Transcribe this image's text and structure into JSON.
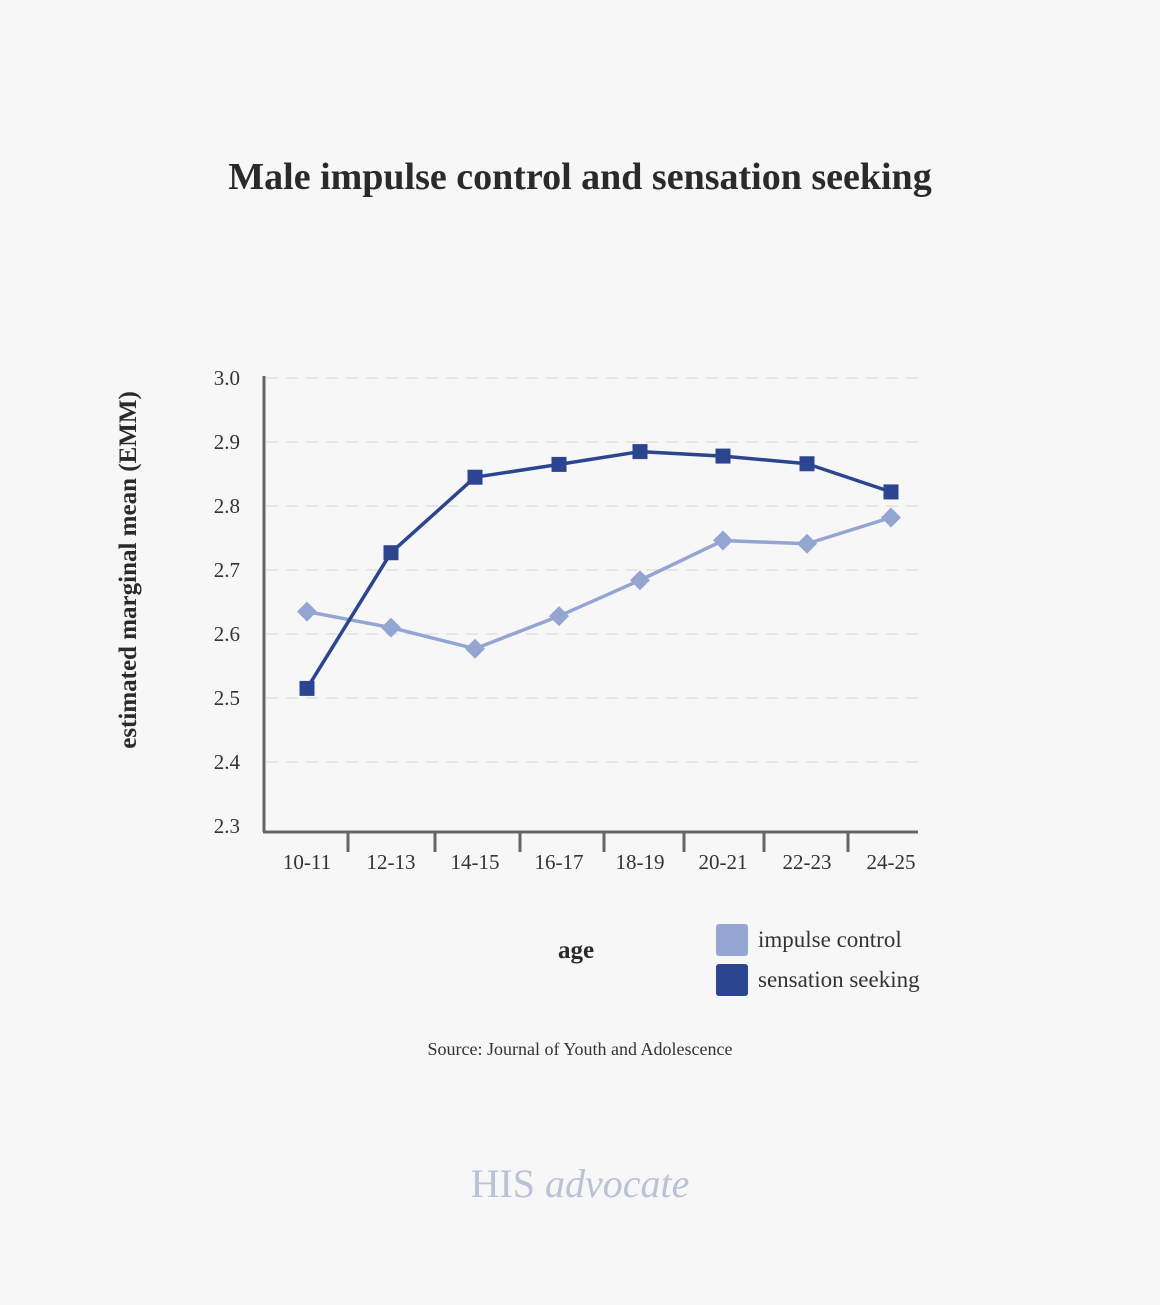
{
  "chart_data": {
    "type": "line",
    "title": "Male impulse control and sensation seeking",
    "xlabel": "age",
    "ylabel": "estimated marginal mean (EMM)",
    "categories": [
      "10-11",
      "12-13",
      "14-15",
      "16-17",
      "18-19",
      "20-21",
      "22-23",
      "24-25"
    ],
    "ylim": [
      2.3,
      3.0
    ],
    "yticks": [
      "2.3",
      "2.4",
      "2.5",
      "2.6",
      "2.7",
      "2.8",
      "2.9",
      "3.0"
    ],
    "grid": "horizontal dashed",
    "legend_position": "bottom-right",
    "series": [
      {
        "name": "impulse control",
        "marker": "diamond",
        "color": "#94a5d1",
        "values": [
          2.635,
          2.61,
          2.577,
          2.628,
          2.684,
          2.746,
          2.741,
          2.782
        ]
      },
      {
        "name": "sensation seeking",
        "marker": "square",
        "color": "#2b4590",
        "values": [
          2.515,
          2.727,
          2.845,
          2.865,
          2.885,
          2.878,
          2.866,
          2.822
        ]
      }
    ]
  },
  "source": "Source: Journal of Youth and Adolescence",
  "brand": {
    "name": "HIS",
    "suffix": "advocate"
  }
}
